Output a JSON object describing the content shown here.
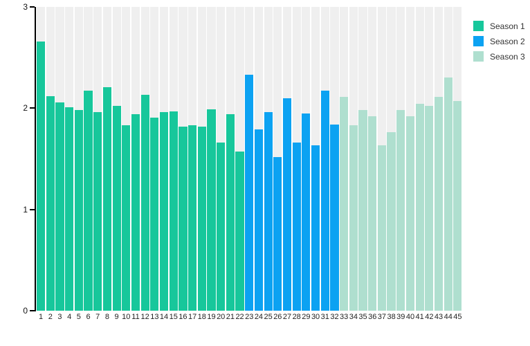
{
  "chart_data": {
    "type": "bar",
    "title": "",
    "xlabel": "",
    "ylabel": "",
    "ylim": [
      0,
      3
    ],
    "yticks": [
      3,
      2,
      1,
      0
    ],
    "grid": "off",
    "plot_background_bands_color": "#efefef",
    "axis_color": "#000000",
    "legend_position": "top-right",
    "categories": [
      "1",
      "2",
      "3",
      "4",
      "5",
      "6",
      "7",
      "8",
      "9",
      "10",
      "11",
      "12",
      "13",
      "14",
      "15",
      "16",
      "17",
      "18",
      "19",
      "20",
      "21",
      "22",
      "23",
      "24",
      "25",
      "26",
      "27",
      "28",
      "29",
      "30",
      "31",
      "32",
      "33",
      "34",
      "35",
      "36",
      "37",
      "38",
      "39",
      "40",
      "41",
      "42",
      "43",
      "44",
      "45"
    ],
    "series": [
      {
        "name": "Season 1",
        "color": "#17c79b",
        "episodes": "1-22",
        "values": [
          2.66,
          2.12,
          2.06,
          2.01,
          1.98,
          2.17,
          1.96,
          2.21,
          2.02,
          1.83,
          1.94,
          2.13,
          1.91,
          1.96,
          1.97,
          1.82,
          1.83,
          1.82,
          1.99,
          1.66,
          1.94,
          1.57
        ]
      },
      {
        "name": "Season 2",
        "color": "#0ca2f2",
        "episodes": "23-32",
        "values": [
          2.33,
          1.79,
          1.96,
          1.52,
          2.1,
          1.66,
          1.95,
          1.63,
          2.17,
          1.84
        ]
      },
      {
        "name": "Season 3",
        "color": "#afdfcf",
        "episodes": "33-45",
        "values": [
          2.11,
          1.83,
          1.98,
          1.92,
          1.63,
          1.76,
          1.98,
          1.92,
          2.04,
          2.02,
          2.11,
          2.3,
          2.07
        ]
      }
    ]
  }
}
